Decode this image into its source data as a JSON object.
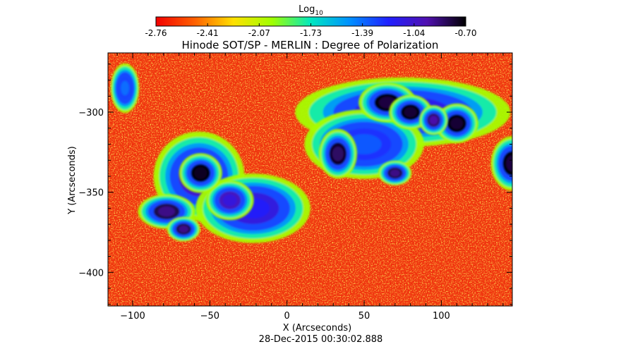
{
  "chart_data": {
    "type": "heatmap",
    "title": "Hinode SOT/SP - MERLIN : Degree of Polarization",
    "timestamp": "28-Dec-2015 00:30:02.888",
    "xlabel": "X (Arcseconds)",
    "ylabel": "Y (Arcseconds)",
    "xlim": [
      -116,
      146
    ],
    "ylim": [
      -421,
      -263
    ],
    "x_ticks": [
      -100,
      -50,
      0,
      50,
      100
    ],
    "y_ticks": [
      -300,
      -350,
      -400
    ],
    "colorbar": {
      "label_main": "Log",
      "label_sub": "10",
      "min": -2.76,
      "max": -0.7,
      "ticks": [
        "-2.76",
        "-2.41",
        "-2.07",
        "-1.73",
        "-1.39",
        "-1.04",
        "-0.70"
      ],
      "colormap": [
        "#f20000",
        "#ff6000",
        "#ffe000",
        "#a0ff00",
        "#00e8c0",
        "#0090ff",
        "#2020ff",
        "#5010b0",
        "#000000"
      ]
    },
    "background_color": "#f03a10",
    "features": [
      {
        "name": "spot-west-umbra",
        "x": -56,
        "y": -338,
        "rx": 9,
        "ry": 8,
        "value": -0.75
      },
      {
        "name": "spot-west-penumbra",
        "x": -57,
        "y": -340,
        "rx": 19,
        "ry": 18,
        "value": -1.15
      },
      {
        "name": "spot-west-lower",
        "x": -78,
        "y": -362,
        "rx": 12,
        "ry": 7,
        "value": -0.9
      },
      {
        "name": "spot-west-lower2",
        "x": -67,
        "y": -373,
        "rx": 7,
        "ry": 5,
        "value": -0.9
      },
      {
        "name": "plage-central",
        "x": -22,
        "y": -360,
        "rx": 24,
        "ry": 14,
        "value": -1.2
      },
      {
        "name": "plage-central-2",
        "x": -37,
        "y": -355,
        "rx": 10,
        "ry": 8,
        "value": -1.1
      },
      {
        "name": "spot-ne-1",
        "x": 33,
        "y": -326,
        "rx": 8,
        "ry": 10,
        "value": -0.85
      },
      {
        "name": "spot-ne-2",
        "x": 65,
        "y": -294,
        "rx": 12,
        "ry": 8,
        "value": -0.8
      },
      {
        "name": "spot-ne-3",
        "x": 80,
        "y": -300,
        "rx": 9,
        "ry": 7,
        "value": -0.78
      },
      {
        "name": "spot-ne-4",
        "x": 110,
        "y": -307,
        "rx": 9,
        "ry": 8,
        "value": -0.78
      },
      {
        "name": "spot-ne-5",
        "x": 95,
        "y": -305,
        "rx": 6,
        "ry": 6,
        "value": -0.95
      },
      {
        "name": "spot-ne-6",
        "x": 70,
        "y": -338,
        "rx": 7,
        "ry": 5,
        "value": -0.9
      },
      {
        "name": "spot-east-edge",
        "x": 146,
        "y": -332,
        "rx": 9,
        "ry": 11,
        "value": -0.8
      },
      {
        "name": "plage-ne-band",
        "x": 75,
        "y": -300,
        "rx": 45,
        "ry": 14,
        "value": -1.25
      },
      {
        "name": "plage-ne-band2",
        "x": 50,
        "y": -320,
        "rx": 25,
        "ry": 14,
        "value": -1.35
      },
      {
        "name": "plage-topleft",
        "x": -105,
        "y": -285,
        "rx": 6,
        "ry": 10,
        "value": -1.4
      }
    ]
  }
}
